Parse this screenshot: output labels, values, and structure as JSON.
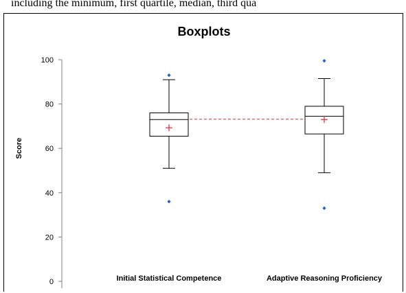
{
  "page": {
    "top_text": "including the minimum, first quartile, median, third qua"
  },
  "chart_data": {
    "type": "box",
    "title": "Boxplots",
    "xlabel": "",
    "ylabel": "Score",
    "ylim": [
      0,
      100
    ],
    "yticks": [
      0,
      20,
      40,
      60,
      80,
      100
    ],
    "grid": false,
    "categories": [
      "Initial Statistical Competence",
      "Adaptive Reasoning Proficiency"
    ],
    "series": [
      {
        "category": "Initial Statistical Competence",
        "min": 51,
        "q1": 65.5,
        "median": 73,
        "q3": 76,
        "max": 91,
        "mean": 69.3,
        "outliers": [
          93,
          36
        ]
      },
      {
        "category": "Adaptive Reasoning Proficiency",
        "min": 49,
        "q1": 66.5,
        "median": 74.5,
        "q3": 79,
        "max": 91.5,
        "mean": 73,
        "outliers": [
          99.5,
          33
        ]
      }
    ],
    "colors": {
      "box": "#000000",
      "mean_marker": "#e8262b",
      "outlier": "#1f5fd6",
      "mean_line": "#e8262b",
      "axis": "#808080"
    }
  }
}
